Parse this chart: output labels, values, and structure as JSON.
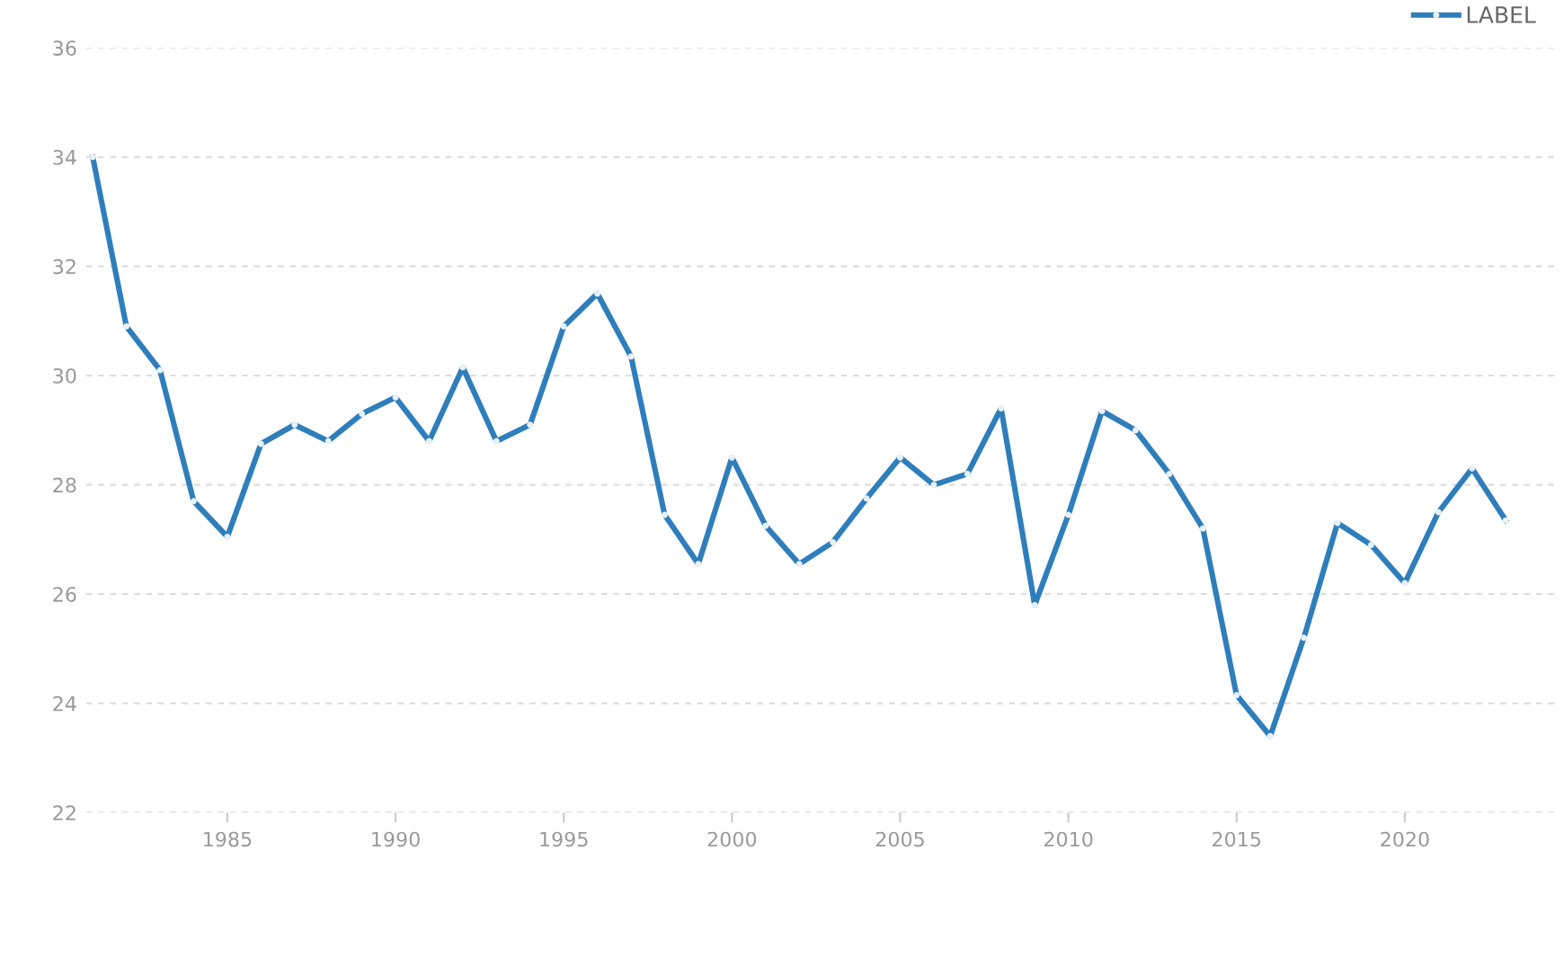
{
  "chart_data": {
    "type": "line",
    "x": [
      1981,
      1982,
      1983,
      1984,
      1985,
      1986,
      1987,
      1988,
      1989,
      1990,
      1991,
      1992,
      1993,
      1994,
      1995,
      1996,
      1997,
      1998,
      1999,
      2000,
      2001,
      2002,
      2003,
      2004,
      2005,
      2006,
      2007,
      2008,
      2009,
      2010,
      2011,
      2012,
      2013,
      2014,
      2015,
      2016,
      2017,
      2018,
      2019,
      2020,
      2021,
      2022,
      2023
    ],
    "series": [
      {
        "name": "LABEL",
        "color": "#2f7ebc",
        "values": [
          34.0,
          30.9,
          30.1,
          27.7,
          27.05,
          28.75,
          29.1,
          28.8,
          29.3,
          29.6,
          28.8,
          30.15,
          28.8,
          29.1,
          30.9,
          31.5,
          30.35,
          27.45,
          26.55,
          28.5,
          27.25,
          26.55,
          26.95,
          27.75,
          28.5,
          28.0,
          28.2,
          29.4,
          25.8,
          27.45,
          29.35,
          29.0,
          28.2,
          27.2,
          24.15,
          23.4,
          25.2,
          27.3,
          26.9,
          26.2,
          27.5,
          28.3,
          27.35
        ]
      }
    ],
    "xlim": [
      1980.8,
      2024.5
    ],
    "xticks": [
      1985,
      1990,
      1995,
      2000,
      2005,
      2010,
      2015,
      2020
    ],
    "ylim": [
      22,
      36
    ],
    "yticks": [
      22,
      24,
      26,
      28,
      30,
      32,
      34,
      36
    ],
    "grid": "y",
    "legend": "top right",
    "marker": "circle",
    "line_style": "solid"
  }
}
